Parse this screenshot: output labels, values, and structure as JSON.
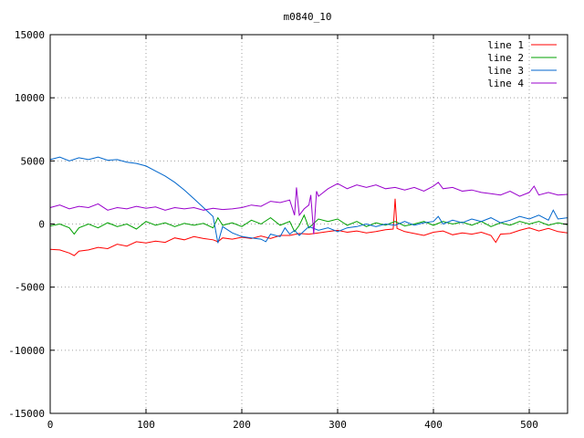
{
  "chart_data": {
    "type": "line",
    "title": "m0840_10",
    "xlabel": "",
    "ylabel": "",
    "xlim": [
      0,
      540
    ],
    "ylim": [
      -15000,
      15000
    ],
    "xticks": [
      0,
      100,
      200,
      300,
      400,
      500
    ],
    "yticks": [
      -15000,
      -10000,
      -5000,
      0,
      5000,
      10000,
      15000
    ],
    "grid": true,
    "legend_position": "top-right",
    "series": [
      {
        "name": "line 1",
        "color": "#ff0000",
        "points": [
          [
            0,
            -2000
          ],
          [
            10,
            -2050
          ],
          [
            20,
            -2300
          ],
          [
            25,
            -2500
          ],
          [
            30,
            -2150
          ],
          [
            40,
            -2050
          ],
          [
            50,
            -1850
          ],
          [
            60,
            -1950
          ],
          [
            70,
            -1600
          ],
          [
            80,
            -1750
          ],
          [
            90,
            -1400
          ],
          [
            100,
            -1500
          ],
          [
            110,
            -1350
          ],
          [
            120,
            -1450
          ],
          [
            130,
            -1100
          ],
          [
            140,
            -1250
          ],
          [
            150,
            -1000
          ],
          [
            160,
            -1150
          ],
          [
            170,
            -1250
          ],
          [
            175,
            -1400
          ],
          [
            180,
            -1100
          ],
          [
            190,
            -1200
          ],
          [
            200,
            -1050
          ],
          [
            210,
            -1150
          ],
          [
            220,
            -950
          ],
          [
            230,
            -1150
          ],
          [
            240,
            -900
          ],
          [
            250,
            -900
          ],
          [
            260,
            -750
          ],
          [
            270,
            -800
          ],
          [
            280,
            -700
          ],
          [
            290,
            -600
          ],
          [
            300,
            -500
          ],
          [
            310,
            -650
          ],
          [
            320,
            -550
          ],
          [
            330,
            -700
          ],
          [
            340,
            -600
          ],
          [
            350,
            -450
          ],
          [
            358,
            -400
          ],
          [
            360,
            2000
          ],
          [
            362,
            -350
          ],
          [
            370,
            -600
          ],
          [
            380,
            -750
          ],
          [
            390,
            -900
          ],
          [
            400,
            -650
          ],
          [
            410,
            -550
          ],
          [
            420,
            -850
          ],
          [
            430,
            -700
          ],
          [
            440,
            -800
          ],
          [
            450,
            -650
          ],
          [
            460,
            -900
          ],
          [
            465,
            -1450
          ],
          [
            470,
            -800
          ],
          [
            480,
            -750
          ],
          [
            490,
            -500
          ],
          [
            500,
            -300
          ],
          [
            510,
            -550
          ],
          [
            520,
            -350
          ],
          [
            530,
            -600
          ],
          [
            540,
            -700
          ]
        ]
      },
      {
        "name": "line 2",
        "color": "#00a000",
        "points": [
          [
            0,
            -150
          ],
          [
            10,
            0
          ],
          [
            20,
            -300
          ],
          [
            25,
            -800
          ],
          [
            30,
            -300
          ],
          [
            40,
            0
          ],
          [
            50,
            -300
          ],
          [
            60,
            100
          ],
          [
            70,
            -200
          ],
          [
            80,
            0
          ],
          [
            90,
            -400
          ],
          [
            100,
            200
          ],
          [
            110,
            -100
          ],
          [
            120,
            100
          ],
          [
            130,
            -200
          ],
          [
            140,
            50
          ],
          [
            150,
            -100
          ],
          [
            160,
            50
          ],
          [
            170,
            -300
          ],
          [
            175,
            500
          ],
          [
            180,
            -100
          ],
          [
            190,
            100
          ],
          [
            200,
            -200
          ],
          [
            210,
            300
          ],
          [
            220,
            0
          ],
          [
            230,
            500
          ],
          [
            240,
            -100
          ],
          [
            250,
            200
          ],
          [
            255,
            -600
          ],
          [
            260,
            -100
          ],
          [
            265,
            700
          ],
          [
            270,
            -300
          ],
          [
            280,
            400
          ],
          [
            290,
            200
          ],
          [
            300,
            400
          ],
          [
            310,
            -100
          ],
          [
            320,
            200
          ],
          [
            330,
            -200
          ],
          [
            340,
            100
          ],
          [
            350,
            -100
          ],
          [
            360,
            200
          ],
          [
            370,
            -150
          ],
          [
            380,
            0
          ],
          [
            390,
            200
          ],
          [
            400,
            -100
          ],
          [
            410,
            200
          ],
          [
            420,
            0
          ],
          [
            430,
            150
          ],
          [
            440,
            -100
          ],
          [
            450,
            200
          ],
          [
            460,
            -200
          ],
          [
            470,
            100
          ],
          [
            480,
            -100
          ],
          [
            490,
            200
          ],
          [
            500,
            0
          ],
          [
            510,
            200
          ],
          [
            520,
            -100
          ],
          [
            530,
            100
          ],
          [
            540,
            -50
          ]
        ]
      },
      {
        "name": "line 3",
        "color": "#0066cc",
        "points": [
          [
            0,
            5100
          ],
          [
            10,
            5300
          ],
          [
            20,
            5000
          ],
          [
            30,
            5250
          ],
          [
            40,
            5100
          ],
          [
            50,
            5300
          ],
          [
            60,
            5050
          ],
          [
            70,
            5100
          ],
          [
            80,
            4900
          ],
          [
            90,
            4800
          ],
          [
            100,
            4600
          ],
          [
            110,
            4200
          ],
          [
            120,
            3800
          ],
          [
            130,
            3300
          ],
          [
            140,
            2700
          ],
          [
            150,
            2000
          ],
          [
            160,
            1300
          ],
          [
            170,
            600
          ],
          [
            175,
            -1500
          ],
          [
            180,
            -200
          ],
          [
            190,
            -700
          ],
          [
            200,
            -1000
          ],
          [
            210,
            -1100
          ],
          [
            220,
            -1200
          ],
          [
            225,
            -1400
          ],
          [
            230,
            -800
          ],
          [
            240,
            -1000
          ],
          [
            245,
            -300
          ],
          [
            250,
            -800
          ],
          [
            255,
            -500
          ],
          [
            260,
            -900
          ],
          [
            270,
            -200
          ],
          [
            280,
            -500
          ],
          [
            290,
            -300
          ],
          [
            300,
            -600
          ],
          [
            310,
            -300
          ],
          [
            320,
            -200
          ],
          [
            330,
            0
          ],
          [
            340,
            -200
          ],
          [
            350,
            0
          ],
          [
            360,
            -100
          ],
          [
            370,
            200
          ],
          [
            380,
            -100
          ],
          [
            390,
            100
          ],
          [
            400,
            200
          ],
          [
            405,
            600
          ],
          [
            410,
            0
          ],
          [
            420,
            300
          ],
          [
            430,
            100
          ],
          [
            440,
            400
          ],
          [
            450,
            200
          ],
          [
            460,
            500
          ],
          [
            470,
            100
          ],
          [
            480,
            300
          ],
          [
            490,
            600
          ],
          [
            500,
            400
          ],
          [
            510,
            700
          ],
          [
            520,
            300
          ],
          [
            525,
            1100
          ],
          [
            530,
            400
          ],
          [
            540,
            500
          ]
        ]
      },
      {
        "name": "line 4",
        "color": "#9900cc",
        "points": [
          [
            0,
            1300
          ],
          [
            10,
            1500
          ],
          [
            20,
            1200
          ],
          [
            30,
            1400
          ],
          [
            40,
            1300
          ],
          [
            50,
            1600
          ],
          [
            60,
            1100
          ],
          [
            70,
            1300
          ],
          [
            80,
            1200
          ],
          [
            90,
            1400
          ],
          [
            100,
            1250
          ],
          [
            110,
            1350
          ],
          [
            120,
            1100
          ],
          [
            130,
            1300
          ],
          [
            140,
            1200
          ],
          [
            150,
            1300
          ],
          [
            160,
            1100
          ],
          [
            170,
            1250
          ],
          [
            180,
            1150
          ],
          [
            190,
            1200
          ],
          [
            200,
            1300
          ],
          [
            210,
            1500
          ],
          [
            220,
            1400
          ],
          [
            230,
            1800
          ],
          [
            240,
            1700
          ],
          [
            250,
            1900
          ],
          [
            255,
            700
          ],
          [
            257,
            2900
          ],
          [
            260,
            700
          ],
          [
            265,
            1200
          ],
          [
            270,
            1500
          ],
          [
            272,
            2300
          ],
          [
            275,
            -800
          ],
          [
            278,
            2600
          ],
          [
            280,
            2200
          ],
          [
            290,
            2800
          ],
          [
            300,
            3200
          ],
          [
            310,
            2800
          ],
          [
            320,
            3100
          ],
          [
            330,
            2900
          ],
          [
            340,
            3100
          ],
          [
            350,
            2800
          ],
          [
            360,
            2900
          ],
          [
            370,
            2700
          ],
          [
            380,
            2900
          ],
          [
            390,
            2600
          ],
          [
            400,
            3000
          ],
          [
            405,
            3300
          ],
          [
            410,
            2800
          ],
          [
            420,
            2900
          ],
          [
            430,
            2600
          ],
          [
            440,
            2700
          ],
          [
            450,
            2500
          ],
          [
            460,
            2400
          ],
          [
            470,
            2300
          ],
          [
            480,
            2600
          ],
          [
            490,
            2200
          ],
          [
            500,
            2500
          ],
          [
            505,
            3000
          ],
          [
            510,
            2300
          ],
          [
            520,
            2500
          ],
          [
            530,
            2300
          ],
          [
            540,
            2350
          ]
        ]
      }
    ]
  }
}
